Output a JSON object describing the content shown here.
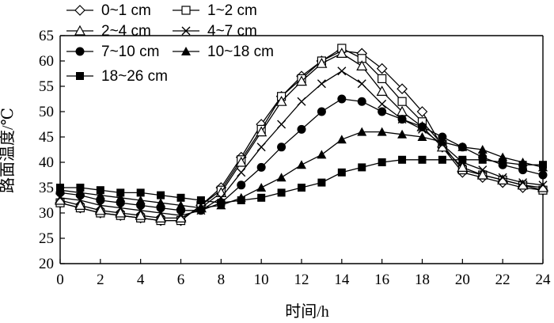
{
  "chart_data": {
    "type": "line",
    "xlabel": "时间/h",
    "ylabel": "路面温度/℃",
    "xlim": [
      0,
      24
    ],
    "ylim": [
      20,
      65
    ],
    "xticks": [
      0,
      2,
      4,
      6,
      8,
      10,
      12,
      14,
      16,
      18,
      20,
      22,
      24
    ],
    "yticks": [
      20,
      25,
      30,
      35,
      40,
      45,
      50,
      55,
      60,
      65
    ],
    "grid": false,
    "legend_position": "top-left",
    "x": [
      0,
      1,
      2,
      3,
      4,
      5,
      6,
      7,
      8,
      9,
      10,
      11,
      12,
      13,
      14,
      15,
      16,
      17,
      18,
      19,
      20,
      21,
      22,
      23,
      24
    ],
    "series": [
      {
        "name": "0~1 cm",
        "marker": "diamond-open",
        "values": [
          32,
          31,
          30,
          29.5,
          29,
          28.5,
          28.5,
          31.5,
          35,
          41,
          47.5,
          53,
          57,
          60,
          62,
          61.5,
          58.5,
          54.5,
          50,
          43,
          38,
          37,
          36,
          35,
          34.5
        ]
      },
      {
        "name": "1~2 cm",
        "marker": "square-open",
        "values": [
          32,
          31,
          30,
          29.5,
          29,
          28.5,
          28.5,
          31.5,
          34.5,
          40.5,
          46.5,
          53,
          56.5,
          60,
          62.5,
          60.5,
          56.5,
          52,
          48,
          43.5,
          38.5,
          37.5,
          36.5,
          35.5,
          34.5
        ]
      },
      {
        "name": "2~4 cm",
        "marker": "triangle-open",
        "values": [
          32.5,
          31.5,
          30.5,
          30,
          29.5,
          29,
          29,
          31,
          34,
          40,
          46,
          52,
          56,
          59.5,
          61.5,
          59,
          54,
          50,
          47,
          43,
          39,
          37.5,
          36.5,
          35.5,
          35
        ]
      },
      {
        "name": "4~7 cm",
        "marker": "cross",
        "values": [
          33,
          32.5,
          31.5,
          31,
          30.5,
          30,
          29.5,
          30.5,
          33,
          38,
          43,
          47.5,
          52,
          55.5,
          58,
          55.5,
          51.5,
          48.5,
          46.5,
          43.5,
          40,
          38.5,
          37,
          36,
          35.5
        ]
      },
      {
        "name": "7~10 cm",
        "marker": "circle-filled",
        "values": [
          34,
          33.5,
          32.5,
          32,
          31.5,
          31,
          30.5,
          30.5,
          32,
          35.5,
          39,
          43,
          46.5,
          50,
          52.5,
          52,
          50,
          48.5,
          47,
          45,
          43,
          41,
          39.5,
          38.5,
          37.5
        ]
      },
      {
        "name": "10~18 cm",
        "marker": "triangle-filled",
        "values": [
          34.5,
          34,
          33.5,
          33,
          32.5,
          32,
          31.5,
          31,
          31.5,
          33,
          35,
          37,
          39.5,
          41.5,
          44.5,
          46,
          46,
          45.5,
          45,
          44,
          43,
          42.5,
          41,
          40,
          39
        ]
      },
      {
        "name": "18~26 cm",
        "marker": "square-filled",
        "values": [
          35,
          35,
          34.5,
          34,
          34,
          33.5,
          33,
          32.5,
          32,
          32.5,
          33,
          34,
          35,
          36,
          38,
          39,
          40,
          40.5,
          40.5,
          40.5,
          40.5,
          40.5,
          40,
          39.5,
          39.5
        ]
      }
    ]
  }
}
